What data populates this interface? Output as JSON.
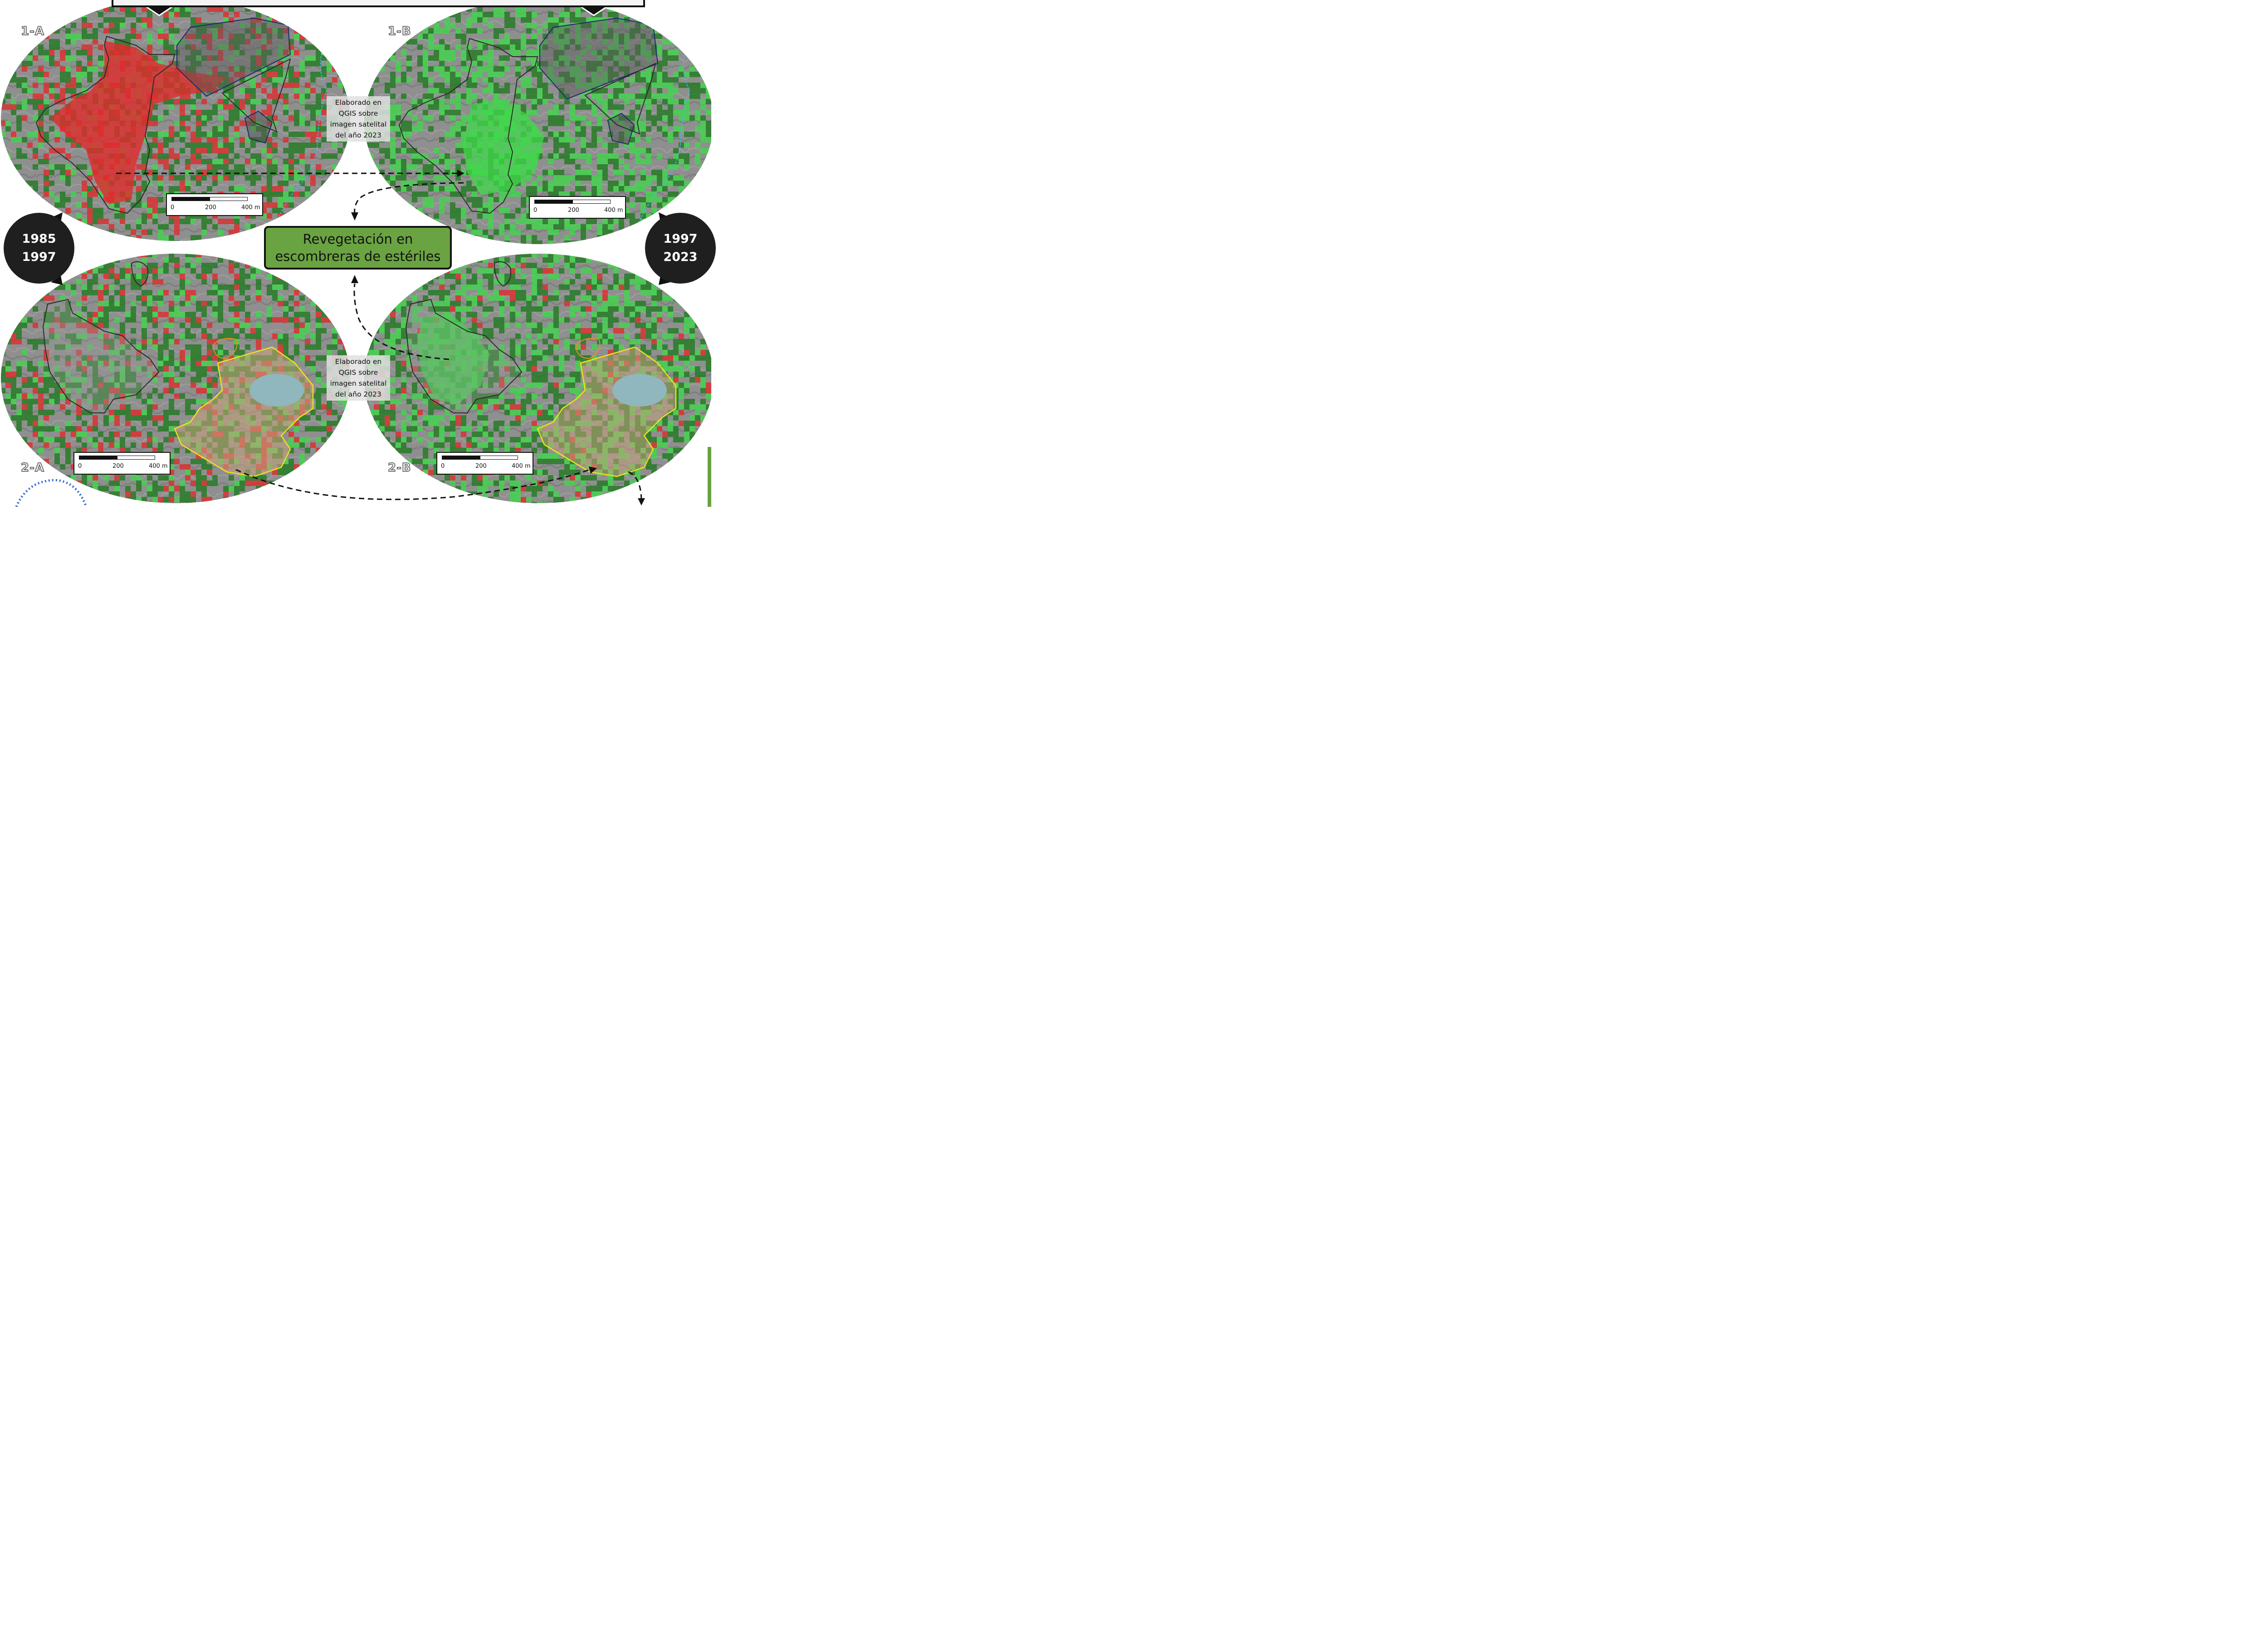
{
  "panels": [
    {
      "id": "1-A",
      "label": "1-A"
    },
    {
      "id": "1-B",
      "label": "1-B"
    },
    {
      "id": "2-A",
      "label": "2-A"
    },
    {
      "id": "2-B",
      "label": "2-B"
    }
  ],
  "attribution": {
    "text1_line1": "Elaborado en",
    "text1_line2": "QGIS sobre",
    "text1_line3": "imagen satelital",
    "text1_line4": "del año 2023"
  },
  "scalebar": {
    "l0": "0",
    "l1": "200",
    "l2": "400 m"
  },
  "periods": {
    "left": {
      "start": "1985",
      "end": "1997"
    },
    "right": {
      "start": "1997",
      "end": "2023"
    }
  },
  "center_label": {
    "line1": "Revegetación en",
    "line2": "escombreras de estériles"
  },
  "colors": {
    "loss": "#e02a2a",
    "gain": "#3fd94a",
    "stable_vegetation": "#1f7a1f",
    "bare_ground": "#8c8c8c",
    "mine_boundary": "#1a2a6c",
    "dump_boundary": "#2a2a2a",
    "tailings_boundary": "#f1e21a",
    "secondary_boundary": "#f08a1a",
    "stream": "#46b8ec",
    "period_circle": "#1f1f1f",
    "center_box": "#6aa341"
  }
}
